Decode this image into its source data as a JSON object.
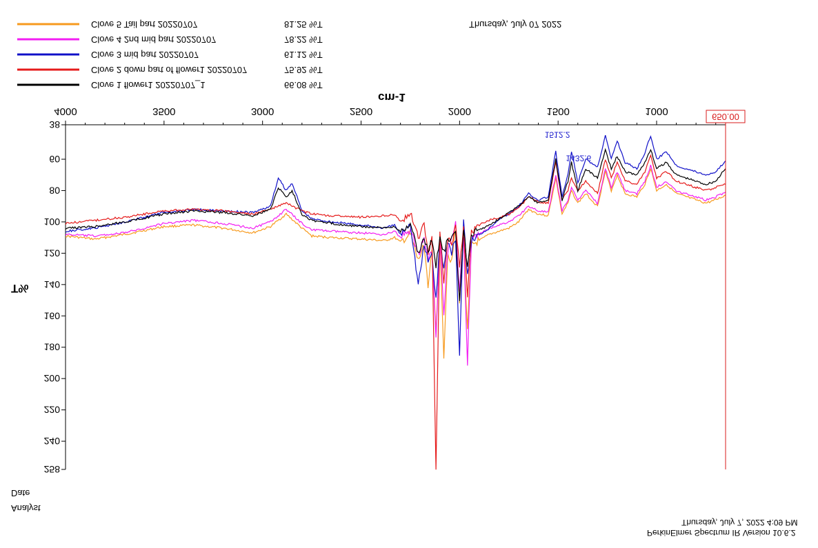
{
  "header": {
    "date_text": "Thursday, July 07 2022"
  },
  "footer": {
    "analyst_label": "Analyst",
    "date_label": "Date",
    "timestamp": "Thursday, July 7, 2022 4:09 PM",
    "software": "PerkinElmer Spectrum IR Version 10.6.2"
  },
  "chart_data": {
    "type": "line",
    "title": "",
    "xlabel": "cm-1",
    "ylabel": "T%",
    "xlim": [
      650,
      4000
    ],
    "ylim": [
      38,
      258
    ],
    "x_ticks": [
      4000,
      3500,
      3000,
      2500,
      2000,
      1500,
      1000
    ],
    "y_ticks": [
      38,
      60,
      80,
      100,
      120,
      140,
      160,
      180,
      200,
      220,
      240,
      258
    ],
    "cursor": {
      "label": "650.00",
      "x": 650,
      "color": "#d81b1b"
    },
    "annotations": [
      {
        "text": "1512.2",
        "x": 1512.2,
        "y": 47,
        "color": "#1a1acc"
      },
      {
        "text": "1432.6",
        "x": 1432.6,
        "y": 55,
        "color": "#1a1acc"
      }
    ],
    "legend_position": "top-left",
    "series": [
      {
        "name": "Clove 5 Tail part 20220707",
        "legend_value": "81.25 %T",
        "color": "#f79a1e",
        "x": [
          4000,
          3850,
          3700,
          3500,
          3350,
          3200,
          3050,
          2960,
          2880,
          2800,
          2750,
          2650,
          2500,
          2380,
          2330,
          2300,
          2250,
          2210,
          2180,
          2160,
          2140,
          2120,
          2100,
          2080,
          2060,
          2040,
          2020,
          2000,
          1980,
          1960,
          1940,
          1900,
          1850,
          1800,
          1750,
          1700,
          1650,
          1600,
          1550,
          1512,
          1480,
          1450,
          1432,
          1400,
          1360,
          1300,
          1260,
          1230,
          1200,
          1160,
          1100,
          1060,
          1030,
          1000,
          950,
          900,
          850,
          800,
          750,
          700,
          650
        ],
        "y": [
          109,
          111,
          108,
          103,
          102,
          104,
          107,
          103,
          95,
          104,
          109,
          110,
          111,
          112,
          110,
          113,
          108,
          125,
          115,
          140,
          120,
          170,
          110,
          185,
          120,
          125,
          105,
          150,
          110,
          170,
          115,
          112,
          108,
          106,
          104,
          100,
          92,
          95,
          96,
          72,
          95,
          88,
          80,
          88,
          82,
          90,
          68,
          80,
          70,
          82,
          84,
          76,
          66,
          80,
          76,
          82,
          84,
          86,
          88,
          86,
          83
        ]
      },
      {
        "name": "Clove 4 2nd mid part 20220707",
        "legend_value": "78.22 %T",
        "color": "#f21df2",
        "x": [
          4000,
          3850,
          3700,
          3500,
          3350,
          3200,
          3050,
          2960,
          2880,
          2800,
          2750,
          2650,
          2500,
          2380,
          2330,
          2300,
          2250,
          2210,
          2180,
          2160,
          2140,
          2120,
          2100,
          2080,
          2060,
          2040,
          2020,
          2000,
          1980,
          1960,
          1940,
          1900,
          1850,
          1800,
          1750,
          1700,
          1650,
          1600,
          1550,
          1512,
          1480,
          1450,
          1432,
          1400,
          1360,
          1300,
          1260,
          1230,
          1200,
          1160,
          1100,
          1060,
          1030,
          1000,
          950,
          900,
          850,
          800,
          750,
          700,
          650
        ],
        "y": [
          108,
          109,
          107,
          101,
          99,
          101,
          104,
          100,
          92,
          101,
          105,
          106,
          107,
          108,
          106,
          110,
          105,
          120,
          112,
          125,
          118,
          175,
          112,
          160,
          118,
          110,
          102,
          145,
          108,
          190,
          112,
          108,
          104,
          102,
          100,
          96,
          90,
          93,
          94,
          70,
          93,
          86,
          78,
          86,
          80,
          88,
          66,
          78,
          68,
          80,
          82,
          74,
          64,
          78,
          74,
          80,
          82,
          84,
          86,
          84,
          81
        ]
      },
      {
        "name": "Clove 3 mid part 20220707",
        "legend_value": "61.12 %T",
        "color": "#1010c8",
        "x": [
          4000,
          3850,
          3700,
          3500,
          3350,
          3200,
          3050,
          2960,
          2920,
          2880,
          2850,
          2800,
          2750,
          2650,
          2500,
          2380,
          2330,
          2300,
          2250,
          2210,
          2180,
          2160,
          2140,
          2120,
          2100,
          2080,
          2060,
          2040,
          2020,
          2000,
          1980,
          1960,
          1940,
          1900,
          1850,
          1800,
          1750,
          1700,
          1650,
          1600,
          1550,
          1512,
          1480,
          1450,
          1432,
          1400,
          1360,
          1300,
          1260,
          1230,
          1200,
          1160,
          1100,
          1060,
          1030,
          1000,
          950,
          900,
          850,
          800,
          750,
          700,
          650
        ],
        "y": [
          106,
          104,
          100,
          94,
          92,
          93,
          94,
          90,
          72,
          80,
          75,
          93,
          98,
          100,
          102,
          104,
          102,
          108,
          100,
          140,
          115,
          125,
          120,
          150,
          110,
          130,
          112,
          120,
          110,
          185,
          100,
          135,
          112,
          108,
          104,
          98,
          95,
          90,
          82,
          86,
          84,
          55,
          84,
          70,
          55,
          75,
          60,
          65,
          45,
          60,
          48,
          62,
          66,
          56,
          45,
          60,
          55,
          64,
          66,
          68,
          70,
          68,
          61
        ]
      },
      {
        "name": "Clove 2 down part of flower1 20220707",
        "legend_value": "75.92 %T",
        "color": "#e51a1a",
        "x": [
          4000,
          3850,
          3700,
          3500,
          3350,
          3200,
          3050,
          2960,
          2880,
          2800,
          2750,
          2650,
          2500,
          2380,
          2330,
          2300,
          2250,
          2210,
          2180,
          2160,
          2140,
          2120,
          2100,
          2080,
          2060,
          2040,
          2020,
          2000,
          1980,
          1960,
          1940,
          1900,
          1850,
          1800,
          1750,
          1700,
          1650,
          1600,
          1550,
          1512,
          1480,
          1450,
          1432,
          1400,
          1360,
          1300,
          1260,
          1230,
          1200,
          1160,
          1100,
          1060,
          1030,
          1000,
          950,
          900,
          850,
          800,
          750,
          700,
          650
        ],
        "y": [
          101,
          99,
          97,
          93,
          92,
          93,
          95,
          92,
          88,
          93,
          95,
          96,
          97,
          96,
          95,
          100,
          94,
          110,
          102,
          120,
          110,
          258,
          105,
          140,
          110,
          115,
          100,
          130,
          104,
          150,
          106,
          102,
          99,
          97,
          95,
          91,
          84,
          87,
          88,
          62,
          86,
          80,
          72,
          80,
          74,
          82,
          60,
          72,
          62,
          74,
          76,
          68,
          58,
          72,
          68,
          74,
          76,
          78,
          80,
          78,
          76
        ]
      },
      {
        "name": "Clove 1 flower1 20220707_1",
        "legend_value": "66.08 %T",
        "color": "#000000",
        "x": [
          4000,
          3850,
          3700,
          3500,
          3350,
          3200,
          3050,
          2960,
          2920,
          2880,
          2850,
          2800,
          2750,
          2650,
          2500,
          2380,
          2330,
          2300,
          2250,
          2210,
          2180,
          2160,
          2140,
          2120,
          2100,
          2080,
          2060,
          2040,
          2020,
          2000,
          1980,
          1960,
          1940,
          1900,
          1850,
          1800,
          1750,
          1700,
          1650,
          1600,
          1550,
          1512,
          1480,
          1450,
          1432,
          1400,
          1360,
          1300,
          1260,
          1230,
          1200,
          1160,
          1100,
          1060,
          1030,
          1000,
          950,
          900,
          850,
          800,
          750,
          700,
          650
        ],
        "y": [
          104,
          103,
          100,
          95,
          93,
          94,
          96,
          92,
          78,
          84,
          80,
          95,
          99,
          101,
          103,
          104,
          103,
          106,
          101,
          120,
          110,
          118,
          112,
          130,
          108,
          120,
          110,
          112,
          106,
          150,
          104,
          130,
          108,
          105,
          102,
          98,
          94,
          90,
          84,
          88,
          86,
          60,
          86,
          74,
          62,
          80,
          66,
          72,
          54,
          66,
          58,
          68,
          70,
          62,
          54,
          66,
          62,
          70,
          72,
          74,
          76,
          74,
          66
        ]
      }
    ]
  }
}
